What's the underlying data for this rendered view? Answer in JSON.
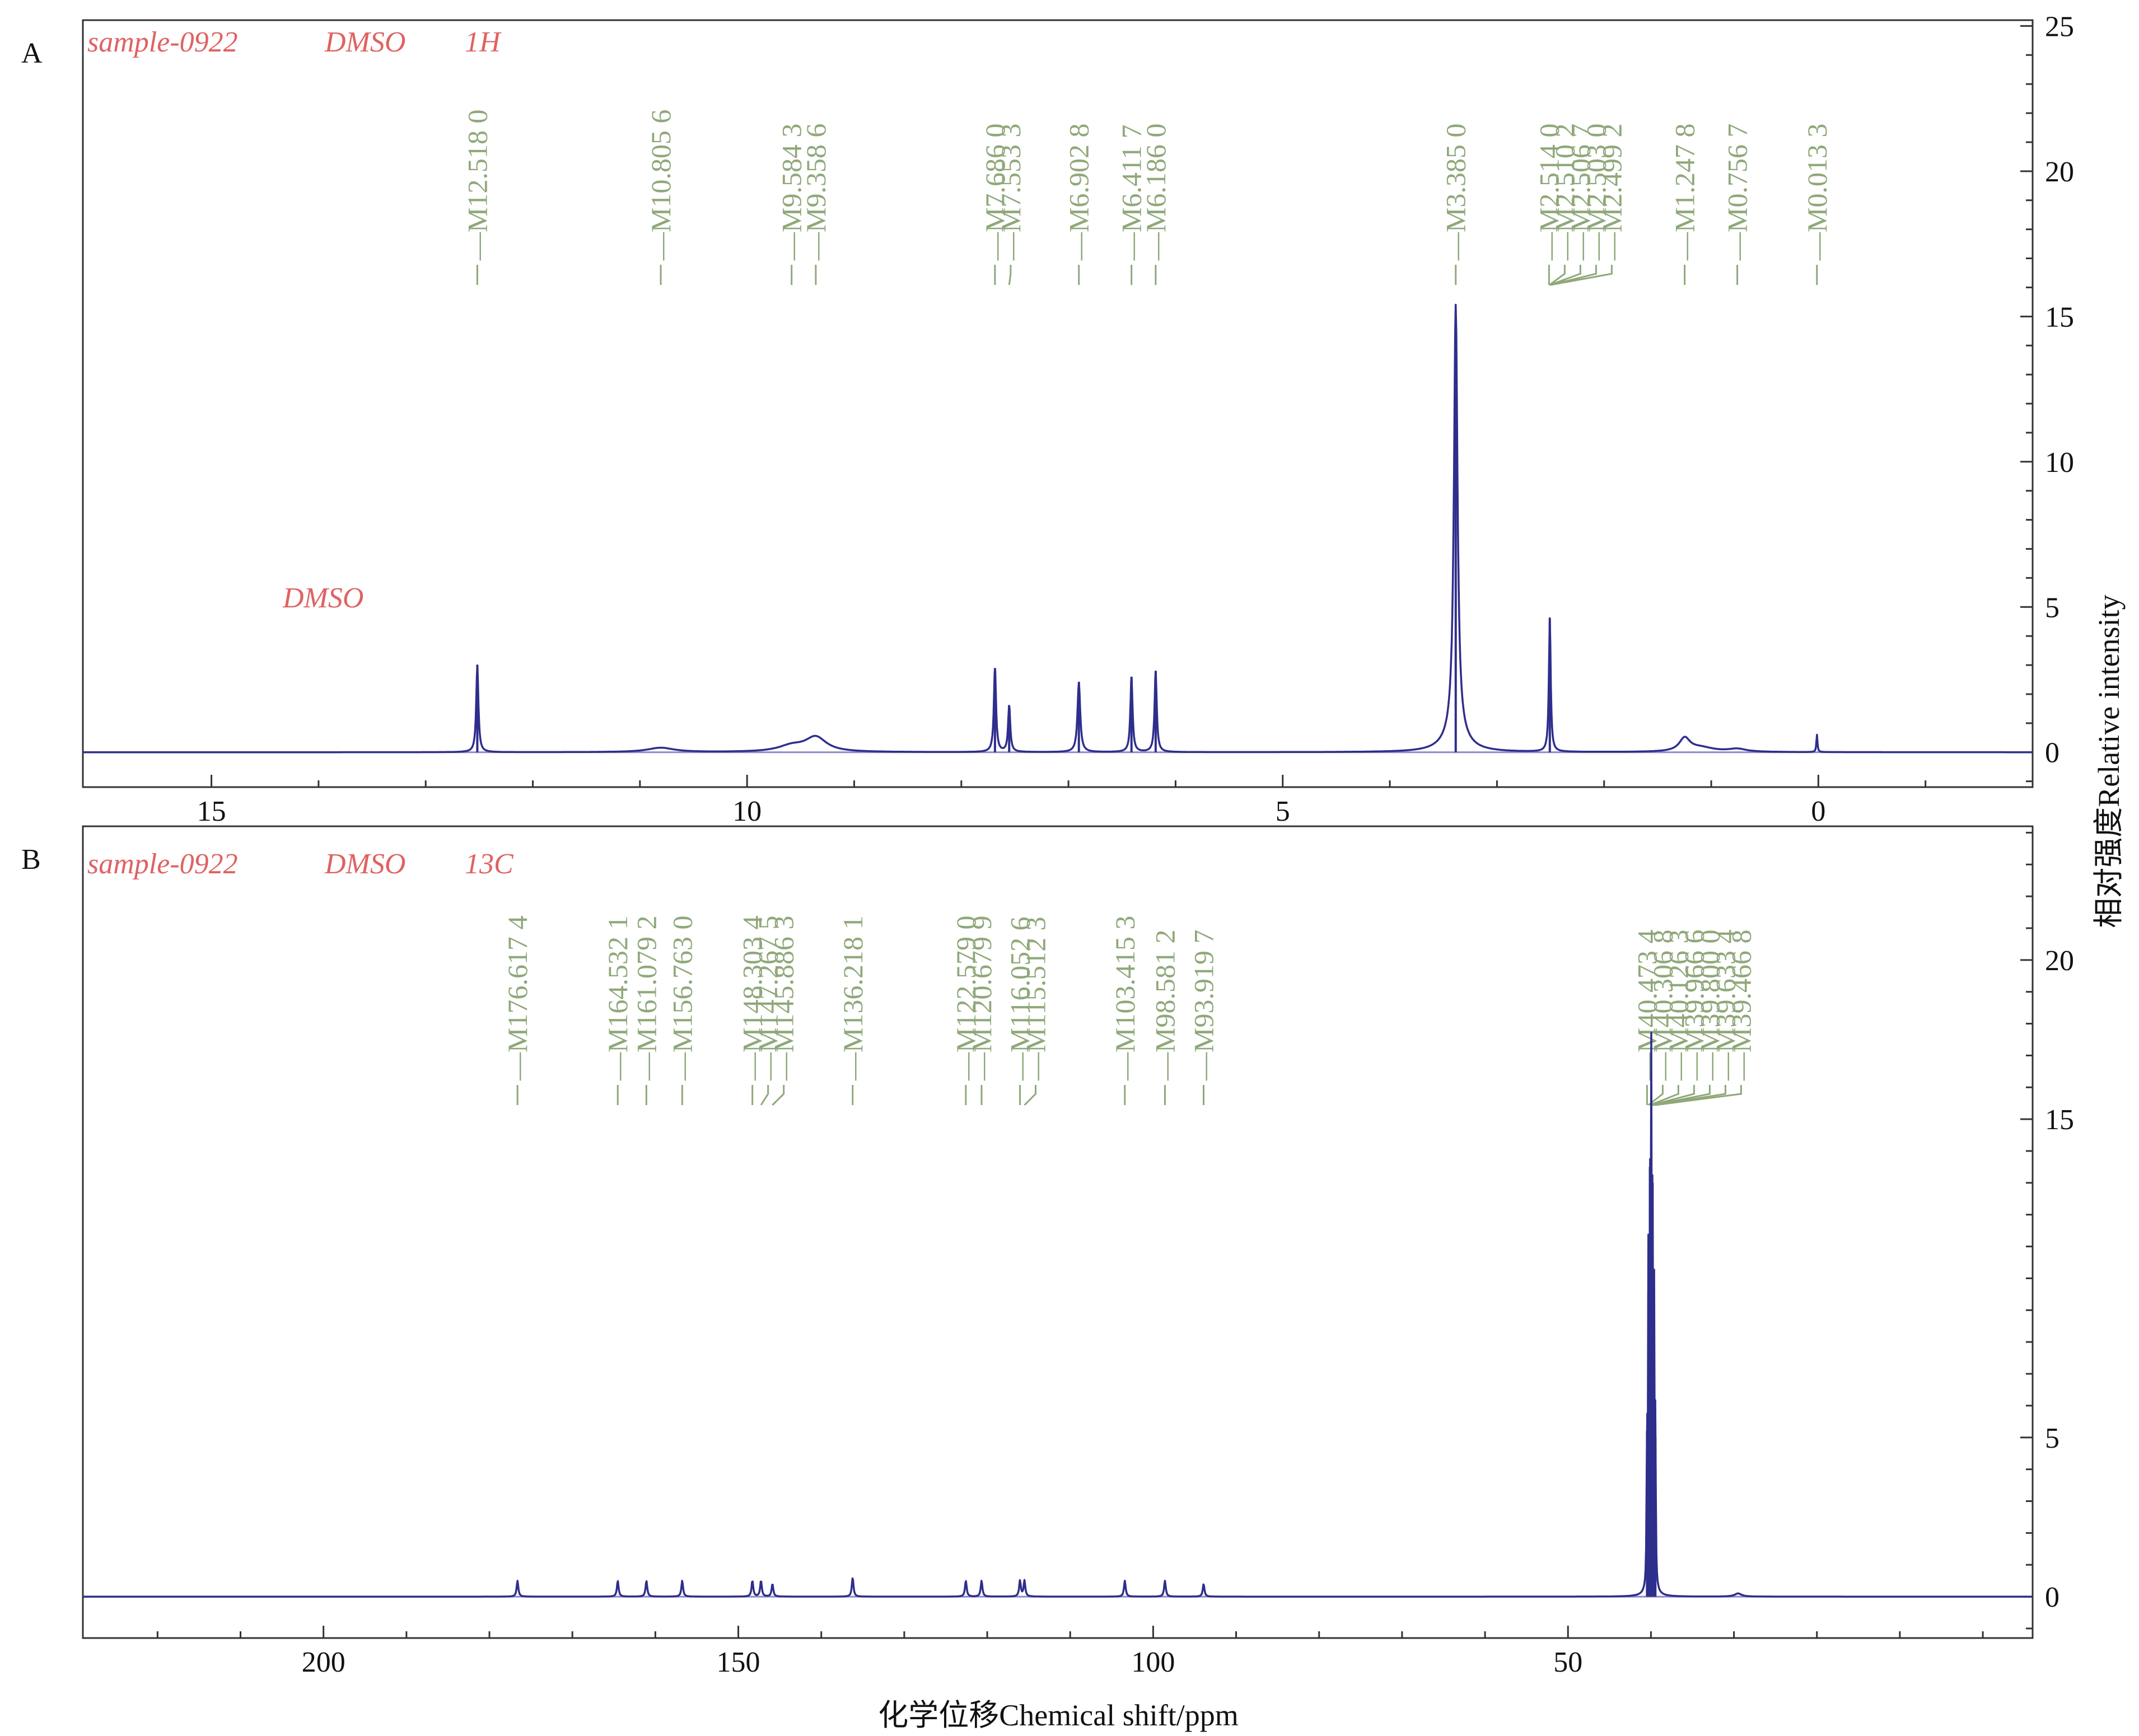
{
  "colors": {
    "spectrum": "#2e2e8c",
    "baseline": "#8a8ac8",
    "peak_label": "#8fa87a",
    "annotation": "#e06262",
    "axis": "#333333"
  },
  "shared_x_axis_label": "化学位移Chemical shift/ppm",
  "shared_y_axis_label": "相对强度Relative intensity",
  "chart_data": [
    {
      "type": "line",
      "panel": "A",
      "title": "sample-0922",
      "solvent": "DMSO",
      "nucleus": "1H",
      "solvent_annotation": "DMSO",
      "xlabel": "化学位移Chemical shift/ppm",
      "ylabel": "相对强度Relative intensity",
      "x_reversed": true,
      "xlim": [
        16.2,
        -2.0
      ],
      "ylim": [
        -1.2,
        25.2
      ],
      "x_ticks": [
        15,
        10,
        5,
        0
      ],
      "y_ticks": [
        0,
        5,
        10,
        15,
        20,
        25
      ],
      "grid": false,
      "peaks": [
        {
          "x": 12.518,
          "y": 3.0,
          "width": 0.012
        },
        {
          "x": 10.8056,
          "y": 0.15,
          "width": 0.15
        },
        {
          "x": 9.5843,
          "y": 0.2,
          "width": 0.15
        },
        {
          "x": 9.3586,
          "y": 0.5,
          "width": 0.12
        },
        {
          "x": 7.686,
          "y": 2.9,
          "width": 0.012
        },
        {
          "x": 7.5533,
          "y": 1.6,
          "width": 0.012
        },
        {
          "x": 6.9028,
          "y": 2.4,
          "width": 0.015
        },
        {
          "x": 6.4117,
          "y": 2.6,
          "width": 0.012
        },
        {
          "x": 6.186,
          "y": 2.8,
          "width": 0.012
        },
        {
          "x": 3.385,
          "y": 14.8,
          "width": 0.02
        },
        {
          "x": 3.385,
          "y": 0.6,
          "width": 0.12
        },
        {
          "x": 2.5067,
          "y": 4.6,
          "width": 0.01
        },
        {
          "x": 1.2478,
          "y": 0.45,
          "width": 0.06
        },
        {
          "x": 1.1,
          "y": 0.15,
          "width": 0.15
        },
        {
          "x": 0.7567,
          "y": 0.1,
          "width": 0.1
        },
        {
          "x": 0.0133,
          "y": 0.6,
          "width": 0.006
        }
      ],
      "peak_labels": [
        "M12.518 0",
        "M10.805 6",
        "M9.584 3",
        "M9.358 6",
        "M7.686 0",
        "M7.553 3",
        "M6.902 8",
        "M6.411 7",
        "M6.186 0",
        "M3.385 0",
        "M2.514 0",
        "M2.510 2",
        "M2.506 7",
        "M2.503 0",
        "M2.499 2",
        "M1.247 8",
        "M0.756 7",
        "M0.013 3"
      ]
    },
    {
      "type": "line",
      "panel": "B",
      "title": "sample-0922",
      "solvent": "DMSO",
      "nucleus": "13C",
      "xlabel": "化学位移Chemical shift/ppm",
      "ylabel": "相对强度Relative intensity",
      "x_reversed": true,
      "xlim": [
        229,
        -6
      ],
      "ylim": [
        -1.3,
        24.2
      ],
      "x_ticks": [
        200,
        150,
        100,
        50
      ],
      "y_ticks": [
        0,
        5,
        15,
        20
      ],
      "grid": false,
      "peaks": [
        {
          "x": 176.6174,
          "y": 0.5,
          "width": 0.12
        },
        {
          "x": 164.5321,
          "y": 0.5,
          "width": 0.12
        },
        {
          "x": 161.0792,
          "y": 0.5,
          "width": 0.12
        },
        {
          "x": 156.763,
          "y": 0.5,
          "width": 0.12
        },
        {
          "x": 148.3034,
          "y": 0.5,
          "width": 0.12
        },
        {
          "x": 147.2675,
          "y": 0.5,
          "width": 0.12
        },
        {
          "x": 145.8863,
          "y": 0.4,
          "width": 0.12
        },
        {
          "x": 136.2181,
          "y": 0.6,
          "width": 0.12
        },
        {
          "x": 122.579,
          "y": 0.5,
          "width": 0.12
        },
        {
          "x": 120.6799,
          "y": 0.5,
          "width": 0.12
        },
        {
          "x": 116.0526,
          "y": 0.5,
          "width": 0.12
        },
        {
          "x": 115.5123,
          "y": 0.5,
          "width": 0.12
        },
        {
          "x": 103.4153,
          "y": 0.5,
          "width": 0.12
        },
        {
          "x": 98.5812,
          "y": 0.5,
          "width": 0.12
        },
        {
          "x": 93.9197,
          "y": 0.4,
          "width": 0.12
        },
        {
          "x": 40.4734,
          "y": 5.2,
          "width": 0.05
        },
        {
          "x": 40.3068,
          "y": 9.5,
          "width": 0.05
        },
        {
          "x": 40.1263,
          "y": 13.5,
          "width": 0.05
        },
        {
          "x": 39.9666,
          "y": 15.0,
          "width": 0.05
        },
        {
          "x": 39.8,
          "y": 13.0,
          "width": 0.05
        },
        {
          "x": 39.6334,
          "y": 9.2,
          "width": 0.05
        },
        {
          "x": 39.4668,
          "y": 5.0,
          "width": 0.05
        },
        {
          "x": 29.5,
          "y": 0.1,
          "width": 0.5
        }
      ],
      "peak_labels": [
        "M176.617 4",
        "M164.532 1",
        "M161.079 2",
        "M156.763 0",
        "M148.303 4",
        "M147.267 5",
        "M145.886 3",
        "M136.218 1",
        "M122.579 0",
        "M120.679 9",
        "M116.052 6",
        "M115.512 3",
        "M103.415 3",
        "M98.581 2",
        "M93.919 7",
        "M40.473 4",
        "M40.306 8",
        "M40.126 3",
        "M39.966 6",
        "M39.800 0",
        "M39.633 4",
        "M39.466 8"
      ]
    }
  ]
}
